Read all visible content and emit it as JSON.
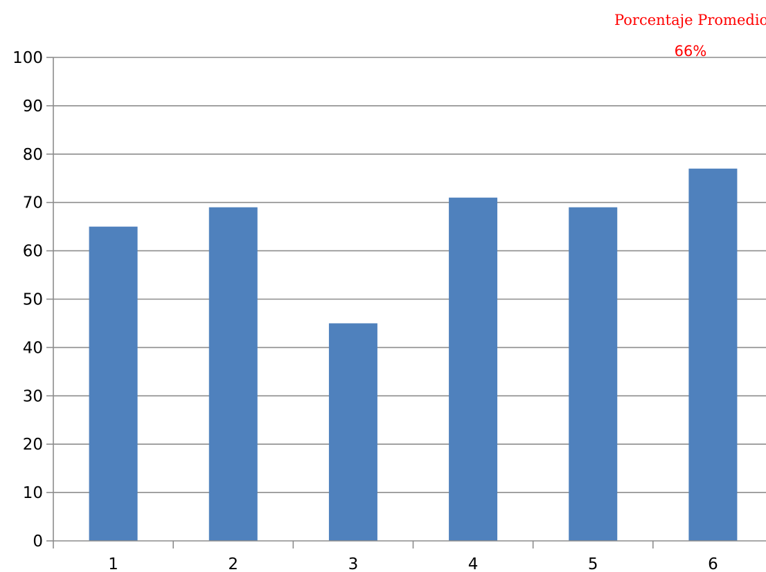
{
  "chart_data": {
    "type": "bar",
    "categories": [
      "1",
      "2",
      "3",
      "4",
      "5",
      "6"
    ],
    "values": [
      65,
      69,
      45,
      71,
      69,
      77
    ],
    "y_ticks": [
      "0",
      "10",
      "20",
      "30",
      "40",
      "50",
      "60",
      "70",
      "80",
      "90",
      "100"
    ],
    "ylim": [
      0,
      100
    ],
    "grid": true,
    "legend": "none",
    "bar_color": "#4f81bd",
    "annotation": {
      "title": "Porcentaje Promedio",
      "value": "66%",
      "color": "#ff0000"
    }
  }
}
